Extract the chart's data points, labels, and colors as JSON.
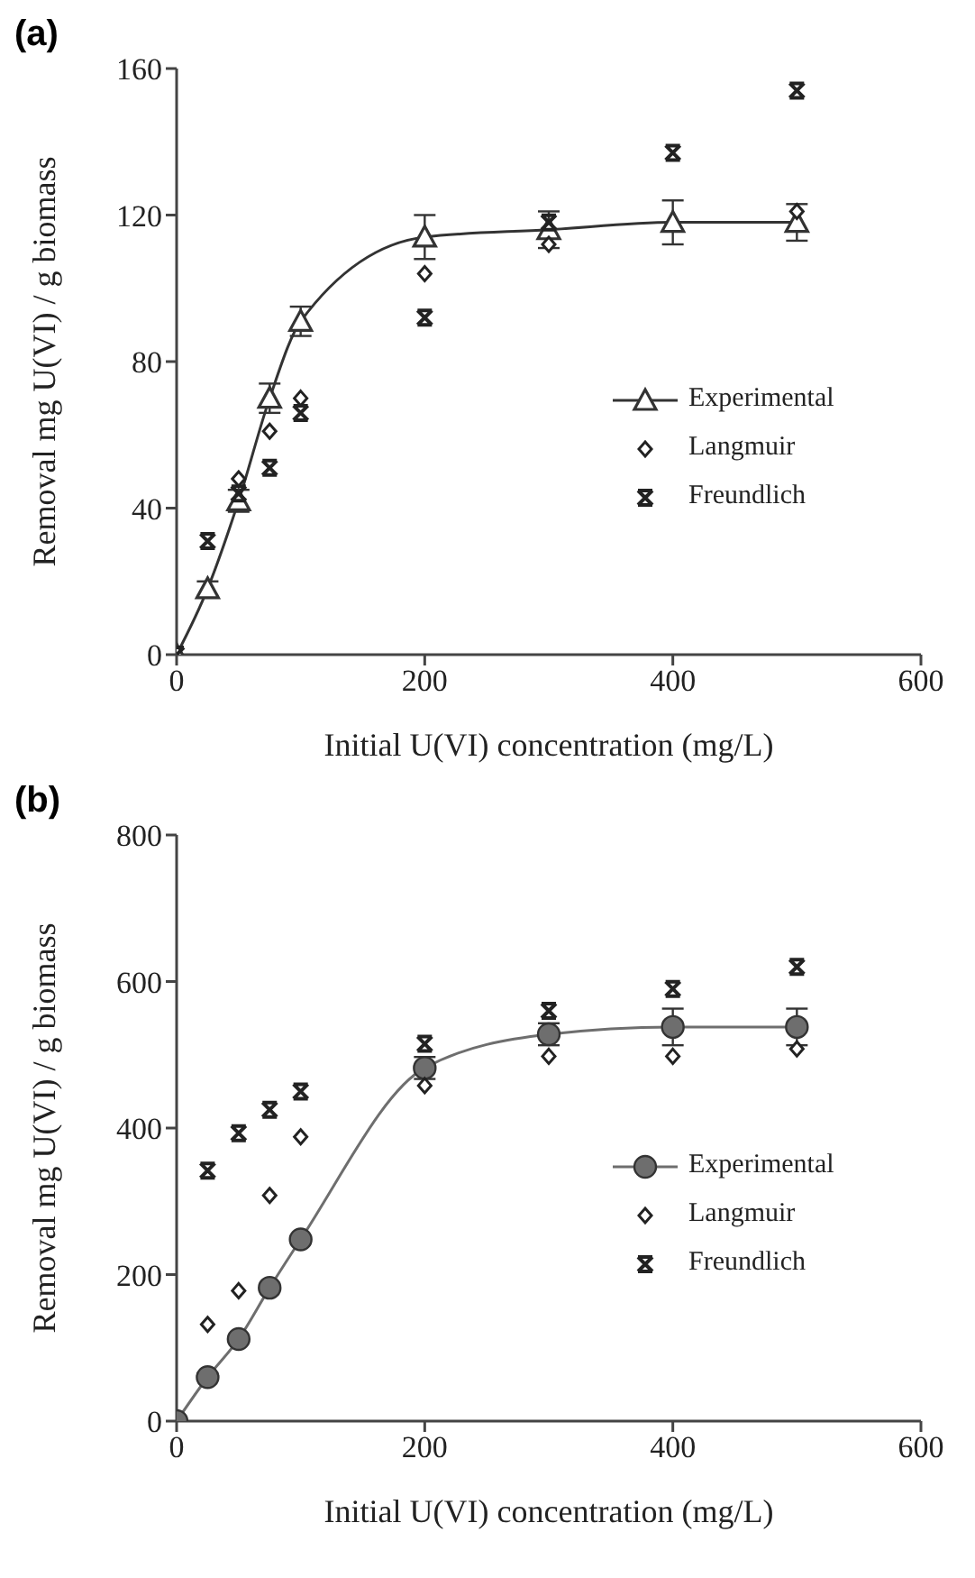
{
  "chart_data": [
    {
      "type": "scatter",
      "title": "(a)",
      "xlabel": "Initial  U(VI)  concentration  (mg/L)",
      "ylabel": "Removal  mg  U(VI)  /  g  biomass",
      "x": [
        0,
        25,
        50,
        75,
        100,
        200,
        300,
        400,
        500
      ],
      "xlim": [
        0,
        600
      ],
      "xticks": [
        0,
        200,
        400,
        600
      ],
      "ylim": [
        0,
        160
      ],
      "yticks": [
        0,
        40,
        80,
        120,
        160
      ],
      "grid": false,
      "legend": "right",
      "series": [
        {
          "name": "Experimental",
          "type": "line",
          "marker": "triangle",
          "color": "#333333",
          "values": [
            0,
            18,
            42,
            70,
            91,
            114,
            116,
            118,
            118
          ],
          "errors": [
            null,
            2,
            3,
            4,
            4,
            6,
            5,
            6,
            5
          ]
        },
        {
          "name": "Langmuir",
          "marker": "diamond",
          "color": "#222222",
          "values": [
            null,
            null,
            48,
            61,
            70,
            104,
            112,
            null,
            121
          ]
        },
        {
          "name": "Freundlich",
          "marker": "cross",
          "color": "#222222",
          "values": [
            0,
            31,
            44,
            51,
            66,
            92,
            118,
            137,
            154
          ]
        }
      ]
    },
    {
      "type": "scatter",
      "title": "(b)",
      "xlabel": "Initial  U(VI)  concentration  (mg/L)",
      "ylabel": "Removal  mg  U(VI)  /  g  biomass",
      "x": [
        0,
        25,
        50,
        75,
        100,
        200,
        300,
        400,
        500
      ],
      "xlim": [
        0,
        600
      ],
      "xticks": [
        0,
        200,
        400,
        600
      ],
      "ylim": [
        0,
        800
      ],
      "yticks": [
        0,
        200,
        400,
        600,
        800
      ],
      "grid": false,
      "legend": "right",
      "series": [
        {
          "name": "Experimental",
          "type": "line",
          "marker": "circle",
          "color": "#6e6e6e",
          "values": [
            0,
            60,
            112,
            182,
            248,
            482,
            528,
            538,
            538
          ],
          "errors": [
            null,
            null,
            null,
            null,
            null,
            15,
            15,
            25,
            25
          ]
        },
        {
          "name": "Langmuir",
          "marker": "diamond",
          "color": "#222222",
          "values": [
            null,
            132,
            178,
            308,
            388,
            458,
            498,
            498,
            508
          ]
        },
        {
          "name": "Freundlich",
          "marker": "cross",
          "color": "#222222",
          "values": [
            null,
            342,
            393,
            425,
            450,
            515,
            560,
            590,
            620
          ]
        }
      ]
    }
  ]
}
